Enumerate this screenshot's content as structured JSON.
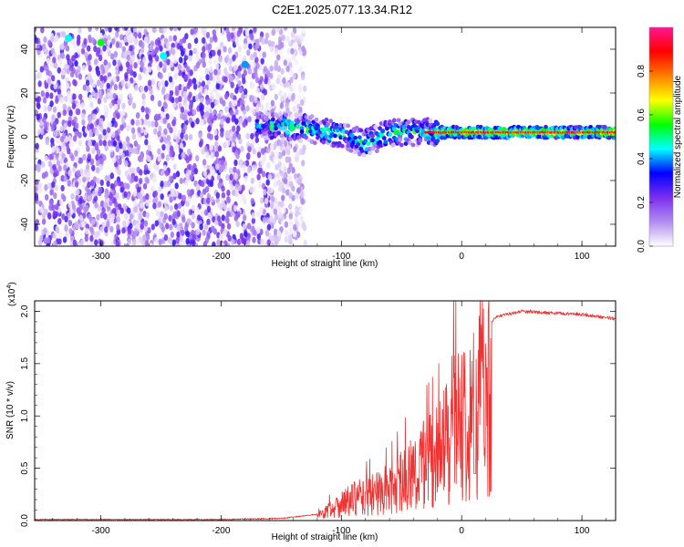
{
  "title": "C2E1.2025.077.13.34.R12",
  "chart_data": [
    {
      "type": "heatmap",
      "title": "C2E1.2025.077.13.34.R12",
      "xlabel": "Height of straight line (km)",
      "ylabel": "Frequency (Hz)",
      "xlim": [
        -355,
        128
      ],
      "ylim": [
        -50,
        50
      ],
      "x_ticks": [
        -300,
        -200,
        -100,
        0,
        100
      ],
      "y_ticks": [
        -40,
        -20,
        0,
        20,
        40
      ],
      "colorbar": {
        "label": "Normalized spectral amplitude",
        "range": [
          0,
          1
        ],
        "ticks": [
          0.0,
          0.2,
          0.4,
          0.6,
          0.8
        ],
        "colormap": [
          "#ffffff",
          "#b18cf0",
          "#7b2ff0",
          "#0000ff",
          "#00ffff",
          "#00ff00",
          "#ffff00",
          "#ff7f00",
          "#ff0000",
          "#ff1493"
        ]
      },
      "features": {
        "noise_region_x": [
          -355,
          -145
        ],
        "signal_center_curve": [
          {
            "x": -165,
            "y": 5
          },
          {
            "x": -130,
            "y": 4
          },
          {
            "x": -100,
            "y": 1
          },
          {
            "x": -80,
            "y": -3
          },
          {
            "x": -60,
            "y": 2
          },
          {
            "x": -40,
            "y": 2
          },
          {
            "x": -20,
            "y": 2
          },
          {
            "x": 0,
            "y": 2
          },
          {
            "x": 50,
            "y": 2
          },
          {
            "x": 128,
            "y": 2
          }
        ]
      }
    },
    {
      "type": "line",
      "xlabel": "Height of straight line (km)",
      "ylabel": "SNR (10 * v/v)",
      "y_multiplier": "(x10",
      "y_multiplier_exp": "4",
      "multiplier_close": ")",
      "xlim": [
        -355,
        128
      ],
      "ylim": [
        0,
        2.1
      ],
      "x_ticks": [
        -300,
        -200,
        -100,
        0,
        100
      ],
      "y_ticks": [
        0.0,
        0.5,
        1.0,
        1.5,
        2.0
      ],
      "y_tick_labels": [
        "0.0",
        "0.5",
        "1.0",
        "1.5",
        "2.0"
      ],
      "color": "#ee3333",
      "envelope": [
        {
          "x": -355,
          "y": 0.01
        },
        {
          "x": -200,
          "y": 0.01
        },
        {
          "x": -150,
          "y": 0.02
        },
        {
          "x": -120,
          "y": 0.06
        },
        {
          "x": -100,
          "y": 0.25
        },
        {
          "x": -80,
          "y": 0.35
        },
        {
          "x": -60,
          "y": 0.45
        },
        {
          "x": -40,
          "y": 0.7
        },
        {
          "x": -20,
          "y": 0.9
        },
        {
          "x": -10,
          "y": 1.3
        },
        {
          "x": 0,
          "y": 1.5
        },
        {
          "x": 10,
          "y": 1.6
        },
        {
          "x": 20,
          "y": 1.85
        },
        {
          "x": 30,
          "y": 1.95
        },
        {
          "x": 50,
          "y": 2.0
        },
        {
          "x": 100,
          "y": 1.97
        },
        {
          "x": 128,
          "y": 1.93
        }
      ]
    }
  ]
}
